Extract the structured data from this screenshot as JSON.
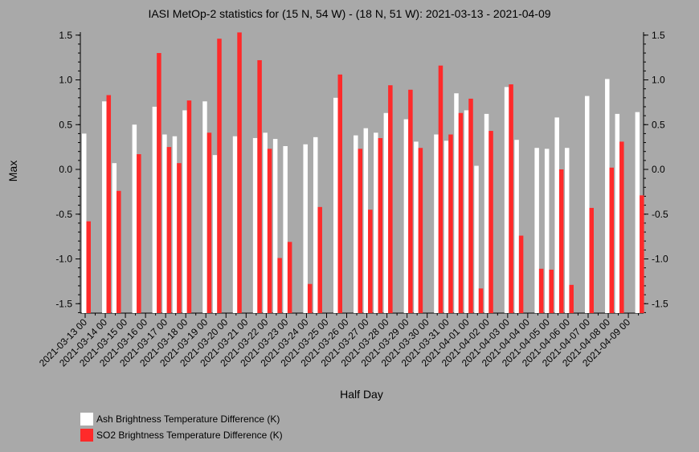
{
  "chart_data": {
    "type": "bar",
    "title": "IASI MetOp-2 statistics for (15 N, 54 W) - (18 N, 51 W): 2021-03-13 - 2021-04-09",
    "xlabel": "Half Day",
    "ylabel": "Max",
    "ylim": [
      -1.6,
      1.55
    ],
    "yticks": [
      "1.5",
      "1.0",
      "0.5",
      "0.0",
      "-0.5",
      "-1.0",
      "-1.5"
    ],
    "ytick_values": [
      1.5,
      1.0,
      0.5,
      0.0,
      -0.5,
      -1.0,
      -1.5
    ],
    "xticks": [
      "2021-03-13 00",
      "2021-03-14 00",
      "2021-03-15 00",
      "2021-03-16 00",
      "2021-03-17 00",
      "2021-03-18 00",
      "2021-03-19 00",
      "2021-03-20 00",
      "2021-03-21 00",
      "2021-03-22 00",
      "2021-03-23 00",
      "2021-03-24 00",
      "2021-03-25 00",
      "2021-03-26 00",
      "2021-03-27 00",
      "2021-03-28 00",
      "2021-03-29 00",
      "2021-03-30 00",
      "2021-03-31 00",
      "2021-04-01 00",
      "2021-04-02 00",
      "2021-04-03 00",
      "2021-04-04 00",
      "2021-04-05 00",
      "2021-04-06 00",
      "2021-04-07 00",
      "2021-04-08 00",
      "2021-04-09 00"
    ],
    "series": [
      {
        "name": "Ash Brightness Temperature Difference (K)",
        "color": "#ffffff",
        "values": [
          0.4,
          null,
          0.76,
          0.07,
          null,
          0.5,
          null,
          0.7,
          0.39,
          0.37,
          0.66,
          null,
          0.76,
          0.16,
          null,
          0.37,
          null,
          0.35,
          0.41,
          0.34,
          0.26,
          null,
          0.28,
          0.36,
          null,
          0.8,
          null,
          0.38,
          0.46,
          0.41,
          0.63,
          null,
          0.56,
          0.31,
          null,
          0.39,
          0.32,
          0.85,
          0.66,
          0.04,
          0.62,
          null,
          0.92,
          0.33,
          null,
          0.24,
          0.23,
          0.58,
          0.24,
          null,
          0.82,
          null,
          1.01,
          0.62,
          null,
          0.64
        ]
      },
      {
        "name": "SO2 Brightness Temperature Difference (K)",
        "color": "#ff2a2a",
        "values": [
          -0.58,
          null,
          0.83,
          -0.24,
          null,
          0.17,
          null,
          1.3,
          0.25,
          0.07,
          0.77,
          null,
          0.41,
          1.46,
          null,
          1.53,
          null,
          1.22,
          0.23,
          -0.99,
          -0.81,
          null,
          -1.28,
          -0.42,
          null,
          1.06,
          null,
          0.23,
          -0.45,
          0.35,
          0.94,
          null,
          0.89,
          0.24,
          null,
          1.16,
          0.39,
          0.63,
          0.79,
          -1.33,
          0.43,
          null,
          0.95,
          -0.74,
          null,
          -1.11,
          -1.12,
          0.0,
          -1.29,
          null,
          -0.43,
          null,
          0.02,
          0.31,
          null,
          -0.29
        ]
      }
    ],
    "grid": false,
    "legend_position": "bottom-left"
  }
}
